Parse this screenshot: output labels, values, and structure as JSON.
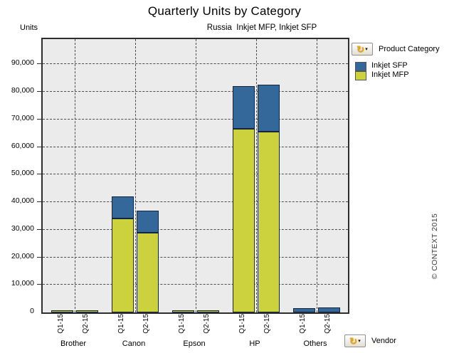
{
  "title": "Quarterly Units by Category",
  "subtitle": "Russia  Inkjet MFP, Inkjet SFP",
  "y_axis_label": "Units",
  "copyright": "© CONTEXT 2015",
  "icons": {
    "pivot_glyph": "↻",
    "caret_glyph": "▾"
  },
  "legend": {
    "field_label": "Product Category"
  },
  "x_axis": {
    "field_label": "Vendor"
  },
  "colors": {
    "plot_bg": "#ebebeb",
    "bar_border": "#16263a",
    "gridline": "#4c4c4c",
    "sfp_blue": "#34689b",
    "mfp_yellow": "#ccd13e"
  },
  "chart_data": {
    "type": "bar",
    "stacked": true,
    "title": "Quarterly Units by Category",
    "subtitle": "Russia  Inkjet MFP, Inkjet SFP",
    "ylabel": "Units",
    "xlabel": "Vendor",
    "ylim": [
      0,
      99000
    ],
    "ytick_interval": 10000,
    "ytick_labels": [
      "0",
      "10,000",
      "20,000",
      "30,000",
      "40,000",
      "50,000",
      "60,000",
      "70,000",
      "80,000",
      "90,000"
    ],
    "grid": "dashed",
    "legend_position": "top-right",
    "categories": [
      "Brother",
      "Canon",
      "Epson",
      "HP",
      "Others"
    ],
    "sub_categories": [
      "Q1-15",
      "Q2-15"
    ],
    "series": [
      {
        "name": "Inkjet SFP",
        "color": "#34689b",
        "values": [
          [
            0,
            0
          ],
          [
            8000,
            8000
          ],
          [
            0,
            0
          ],
          [
            15500,
            17200
          ],
          [
            1500,
            1900
          ]
        ]
      },
      {
        "name": "Inkjet MFP",
        "color": "#ccd13e",
        "values": [
          [
            800,
            800
          ],
          [
            34000,
            29000
          ],
          [
            700,
            800
          ],
          [
            66500,
            65500
          ],
          [
            0,
            0
          ]
        ]
      }
    ],
    "stack_order_bottom_to_top": [
      "Inkjet MFP",
      "Inkjet SFP"
    ],
    "totals": {
      "Brother": [
        800,
        800
      ],
      "Canon": [
        42000,
        37000
      ],
      "Epson": [
        700,
        800
      ],
      "HP": [
        82000,
        82700
      ],
      "Others": [
        1500,
        1900
      ]
    }
  }
}
